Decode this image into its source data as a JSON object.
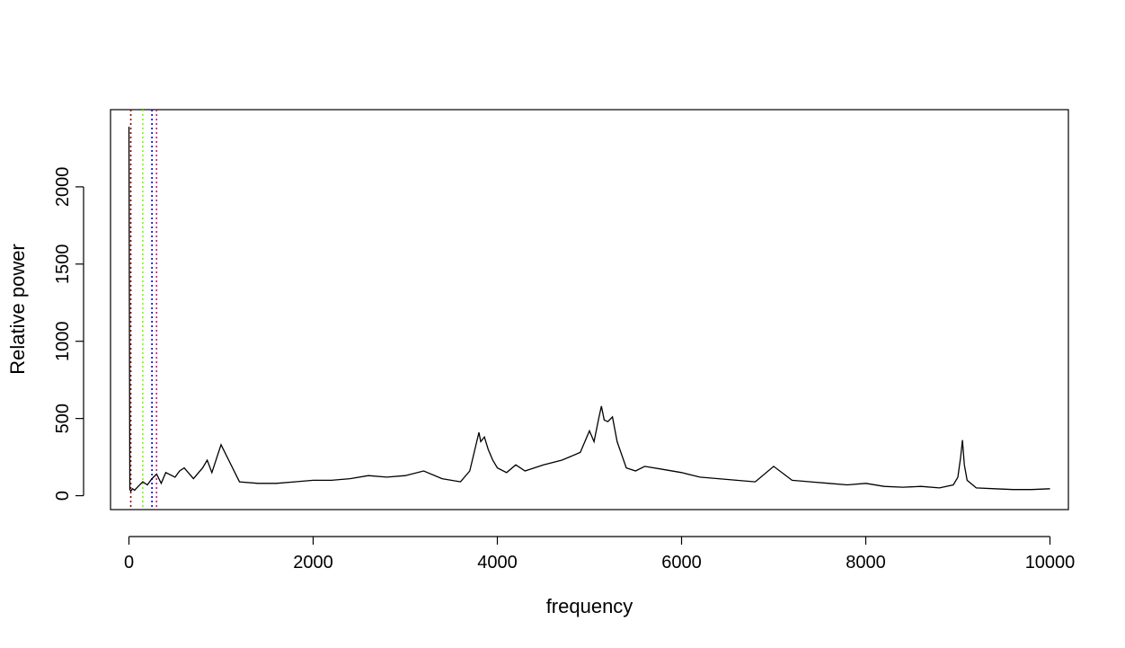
{
  "chart_data": {
    "type": "line",
    "title": "",
    "xlabel": "frequency",
    "ylabel": "Relative power",
    "xlim": [
      -200,
      10200
    ],
    "ylim": [
      -90,
      2500
    ],
    "x_ticks": [
      0,
      2000,
      4000,
      6000,
      8000,
      10000
    ],
    "x_tick_labels": [
      "0",
      "2000",
      "4000",
      "6000",
      "8000",
      "10000"
    ],
    "y_ticks": [
      0,
      500,
      1000,
      1500,
      2000
    ],
    "y_tick_labels": [
      "0",
      "500",
      "1000",
      "1500",
      "2000"
    ],
    "grid": false,
    "legend": "none",
    "series": [
      {
        "color": "#000000",
        "x": [
          0,
          10,
          20,
          40,
          60,
          100,
          150,
          200,
          250,
          300,
          350,
          400,
          500,
          550,
          600,
          700,
          800,
          850,
          900,
          1000,
          1200,
          1400,
          1600,
          1800,
          2000,
          2200,
          2400,
          2600,
          2800,
          3000,
          3200,
          3400,
          3600,
          3700,
          3800,
          3820,
          3860,
          3900,
          3950,
          4000,
          4100,
          4200,
          4300,
          4500,
          4700,
          4900,
          5000,
          5050,
          5100,
          5130,
          5160,
          5200,
          5250,
          5300,
          5400,
          5500,
          5600,
          5800,
          6000,
          6200,
          6400,
          6600,
          6800,
          7000,
          7200,
          7400,
          7600,
          7800,
          8000,
          8200,
          8400,
          8600,
          8800,
          8950,
          9000,
          9030,
          9050,
          9070,
          9100,
          9200,
          9400,
          9600,
          9800,
          10000
        ],
        "y": [
          2390,
          40,
          30,
          45,
          35,
          60,
          90,
          70,
          110,
          140,
          80,
          150,
          120,
          160,
          180,
          110,
          180,
          230,
          150,
          330,
          90,
          80,
          80,
          90,
          100,
          100,
          110,
          130,
          120,
          130,
          160,
          110,
          90,
          160,
          410,
          350,
          380,
          300,
          230,
          180,
          150,
          200,
          160,
          200,
          230,
          280,
          420,
          350,
          500,
          580,
          490,
          480,
          510,
          350,
          180,
          160,
          190,
          170,
          150,
          120,
          110,
          100,
          90,
          190,
          100,
          90,
          80,
          70,
          80,
          60,
          55,
          60,
          50,
          70,
          120,
          250,
          360,
          200,
          100,
          50,
          45,
          40,
          40,
          45
        ]
      }
    ],
    "vlines": [
      {
        "x": 20,
        "color": "#8b0000"
      },
      {
        "x": 150,
        "color": "#7cfc00"
      },
      {
        "x": 250,
        "color": "#0000cd"
      },
      {
        "x": 300,
        "color": "#c71585"
      }
    ]
  }
}
